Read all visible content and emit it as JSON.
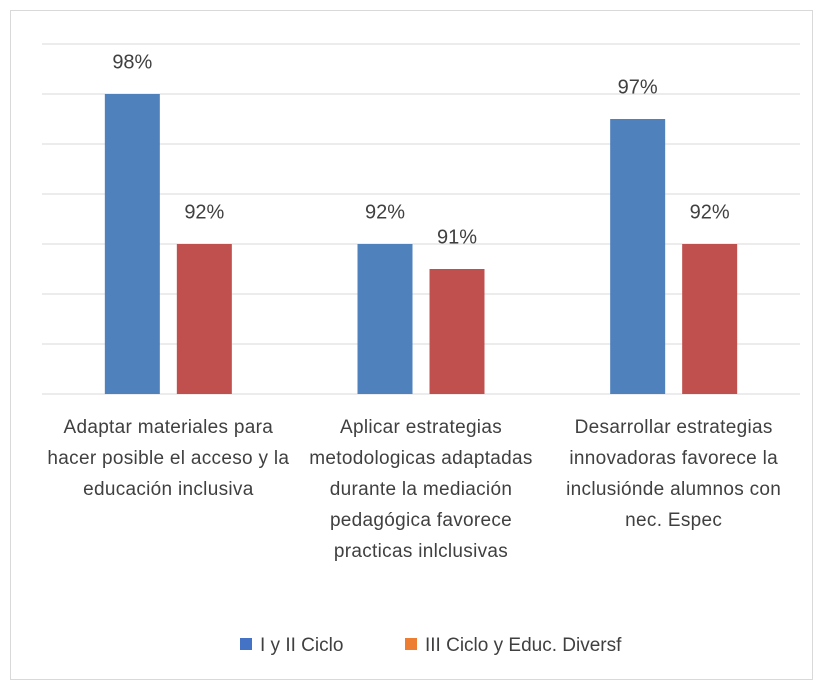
{
  "chart_data": {
    "type": "bar",
    "categories": [
      "Adaptar materiales para hacer posible el acceso y  la educación inclusiva",
      "Aplicar estrategias metodologicas adaptadas durante la mediación pedagógica favorece practicas inlclusivas",
      "Desarrollar estrategias innovadoras favorece la inclusiónde alumnos con nec. Espec"
    ],
    "series": [
      {
        "name": "I y II Ciclo",
        "color": "#4f81bd",
        "legend_color": "#4472c4",
        "values": [
          98,
          92,
          97
        ],
        "value_labels": [
          "98%",
          "92%",
          "97%"
        ]
      },
      {
        "name": "III Ciclo y Educ. Diversf",
        "color": "#c0504d",
        "legend_color": "#ed7d31",
        "values": [
          92,
          91,
          92
        ],
        "value_labels": [
          "92%",
          "91%",
          "92%"
        ]
      }
    ],
    "ylim": [
      86,
      100
    ],
    "yticks": [
      86,
      88,
      90,
      92,
      94,
      96,
      98,
      100
    ],
    "grid": true
  }
}
